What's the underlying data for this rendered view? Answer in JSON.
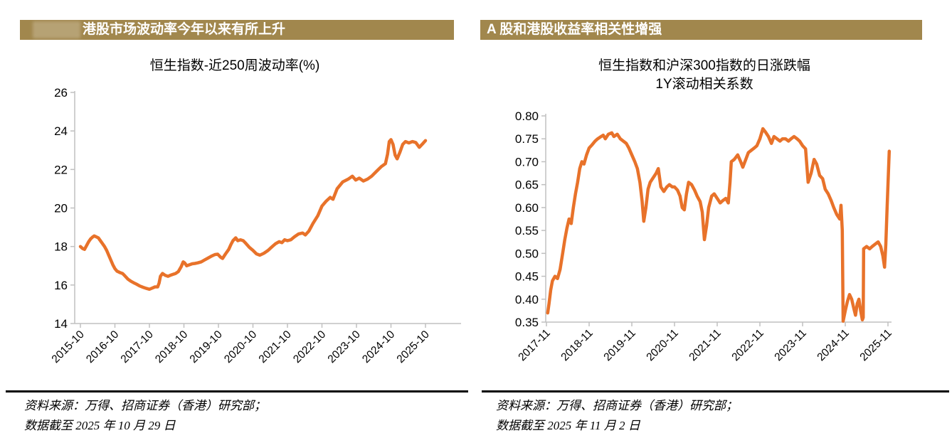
{
  "colors": {
    "header_gold": "#A1874D",
    "header_badge": "#B8A477",
    "line_orange": "#E8722A",
    "axis_grey": "#C0C0C0",
    "header_text": "#FFFFFF"
  },
  "panels": [
    {
      "header_title": "港股市场波动率今年以来有所上升",
      "chart_title": "恒生指数-近250周波动率(%)",
      "source_line1": "资料来源：万得、招商证券（香港）研究部；",
      "source_line2": "数据截至 2025 年 10 月 29 日"
    },
    {
      "header_title": "A 股和港股收益率相关性增强",
      "chart_title_line1": "恒生指数和沪深300指数的日涨跌幅",
      "chart_title_line2": "1Y滚动相关系数",
      "source_line1": "资料来源：万得、招商证券（香港）研究部；",
      "source_line2": "数据截至 2025 年 11 月 2 日"
    }
  ],
  "chart_data": [
    {
      "type": "line",
      "title": "恒生指数-近250周波动率(%)",
      "xlabel": "",
      "ylabel": "",
      "grid": false,
      "legend": "none",
      "ylim": [
        14,
        26
      ],
      "y_ticks": [
        14,
        16,
        18,
        20,
        22,
        24,
        26
      ],
      "y_tick_decimals": 0,
      "x_tick_labels": [
        "2015-10",
        "2016-10",
        "2017-10",
        "2018-10",
        "2019-10",
        "2020-10",
        "2021-10",
        "2022-10",
        "2023-10",
        "2024-10",
        "2025-10"
      ],
      "series": [
        {
          "name": "恒生指数近250周波动率(%)",
          "color": "#E8722A",
          "points": [
            [
              0,
              18.0
            ],
            [
              0.06,
              17.9
            ],
            [
              0.12,
              17.85
            ],
            [
              0.18,
              18.05
            ],
            [
              0.24,
              18.25
            ],
            [
              0.3,
              18.4
            ],
            [
              0.36,
              18.5
            ],
            [
              0.4,
              18.55
            ],
            [
              0.46,
              18.5
            ],
            [
              0.52,
              18.45
            ],
            [
              0.58,
              18.3
            ],
            [
              0.64,
              18.15
            ],
            [
              0.7,
              18.0
            ],
            [
              0.76,
              17.8
            ],
            [
              0.82,
              17.55
            ],
            [
              0.88,
              17.3
            ],
            [
              0.94,
              17.05
            ],
            [
              1.0,
              16.85
            ],
            [
              1.06,
              16.72
            ],
            [
              1.14,
              16.65
            ],
            [
              1.22,
              16.6
            ],
            [
              1.3,
              16.45
            ],
            [
              1.38,
              16.3
            ],
            [
              1.46,
              16.2
            ],
            [
              1.54,
              16.12
            ],
            [
              1.62,
              16.05
            ],
            [
              1.72,
              15.95
            ],
            [
              1.82,
              15.88
            ],
            [
              1.92,
              15.82
            ],
            [
              2.0,
              15.78
            ],
            [
              2.08,
              15.84
            ],
            [
              2.16,
              15.9
            ],
            [
              2.24,
              15.9
            ],
            [
              2.28,
              16.1
            ],
            [
              2.32,
              16.45
            ],
            [
              2.38,
              16.6
            ],
            [
              2.46,
              16.5
            ],
            [
              2.54,
              16.45
            ],
            [
              2.6,
              16.5
            ],
            [
              2.68,
              16.55
            ],
            [
              2.76,
              16.6
            ],
            [
              2.84,
              16.7
            ],
            [
              2.92,
              16.95
            ],
            [
              2.98,
              17.2
            ],
            [
              3.02,
              17.15
            ],
            [
              3.08,
              17.0
            ],
            [
              3.16,
              17.05
            ],
            [
              3.24,
              17.1
            ],
            [
              3.32,
              17.12
            ],
            [
              3.4,
              17.15
            ],
            [
              3.5,
              17.2
            ],
            [
              3.6,
              17.3
            ],
            [
              3.7,
              17.4
            ],
            [
              3.8,
              17.5
            ],
            [
              3.9,
              17.58
            ],
            [
              3.98,
              17.6
            ],
            [
              4.06,
              17.45
            ],
            [
              4.12,
              17.38
            ],
            [
              4.2,
              17.6
            ],
            [
              4.3,
              17.85
            ],
            [
              4.36,
              18.1
            ],
            [
              4.42,
              18.3
            ],
            [
              4.5,
              18.45
            ],
            [
              4.56,
              18.3
            ],
            [
              4.64,
              18.35
            ],
            [
              4.72,
              18.3
            ],
            [
              4.8,
              18.15
            ],
            [
              4.9,
              17.95
            ],
            [
              5.0,
              17.8
            ],
            [
              5.1,
              17.62
            ],
            [
              5.2,
              17.55
            ],
            [
              5.32,
              17.65
            ],
            [
              5.44,
              17.8
            ],
            [
              5.56,
              18.0
            ],
            [
              5.66,
              18.15
            ],
            [
              5.76,
              18.25
            ],
            [
              5.84,
              18.2
            ],
            [
              5.92,
              18.35
            ],
            [
              6.0,
              18.3
            ],
            [
              6.1,
              18.35
            ],
            [
              6.2,
              18.5
            ],
            [
              6.32,
              18.65
            ],
            [
              6.44,
              18.7
            ],
            [
              6.52,
              18.6
            ],
            [
              6.62,
              18.8
            ],
            [
              6.74,
              19.2
            ],
            [
              6.88,
              19.6
            ],
            [
              7.0,
              20.1
            ],
            [
              7.12,
              20.35
            ],
            [
              7.24,
              20.55
            ],
            [
              7.32,
              20.45
            ],
            [
              7.44,
              21.0
            ],
            [
              7.6,
              21.35
            ],
            [
              7.76,
              21.5
            ],
            [
              7.88,
              21.65
            ],
            [
              7.98,
              21.45
            ],
            [
              8.08,
              21.55
            ],
            [
              8.2,
              21.4
            ],
            [
              8.32,
              21.5
            ],
            [
              8.44,
              21.65
            ],
            [
              8.58,
              21.9
            ],
            [
              8.72,
              22.15
            ],
            [
              8.84,
              22.3
            ],
            [
              8.9,
              22.8
            ],
            [
              8.95,
              23.45
            ],
            [
              9.0,
              23.55
            ],
            [
              9.06,
              23.3
            ],
            [
              9.12,
              22.75
            ],
            [
              9.18,
              22.55
            ],
            [
              9.26,
              22.9
            ],
            [
              9.34,
              23.3
            ],
            [
              9.42,
              23.45
            ],
            [
              9.52,
              23.38
            ],
            [
              9.62,
              23.45
            ],
            [
              9.72,
              23.4
            ],
            [
              9.82,
              23.15
            ],
            [
              9.9,
              23.3
            ],
            [
              10.0,
              23.5
            ]
          ]
        }
      ]
    },
    {
      "type": "line",
      "title": "恒生指数和沪深300指数的日涨跌幅 1Y滚动相关系数",
      "xlabel": "",
      "ylabel": "",
      "grid": false,
      "legend": "none",
      "ylim": [
        0.35,
        0.8
      ],
      "y_ticks": [
        0.35,
        0.4,
        0.45,
        0.5,
        0.55,
        0.6,
        0.65,
        0.7,
        0.75,
        0.8
      ],
      "y_tick_decimals": 2,
      "x_tick_labels": [
        "2017-11",
        "2018-11",
        "2019-11",
        "2020-11",
        "2021-11",
        "2022-11",
        "2023-11",
        "2024-11",
        "2025-11"
      ],
      "series": [
        {
          "name": "恒生指数与沪深300 1Y滚动相关系数",
          "color": "#E8722A",
          "points": [
            [
              0.03,
              0.37
            ],
            [
              0.06,
              0.39
            ],
            [
              0.1,
              0.42
            ],
            [
              0.14,
              0.44
            ],
            [
              0.2,
              0.45
            ],
            [
              0.26,
              0.445
            ],
            [
              0.32,
              0.465
            ],
            [
              0.38,
              0.5
            ],
            [
              0.43,
              0.53
            ],
            [
              0.48,
              0.555
            ],
            [
              0.53,
              0.575
            ],
            [
              0.58,
              0.565
            ],
            [
              0.63,
              0.6
            ],
            [
              0.68,
              0.63
            ],
            [
              0.73,
              0.655
            ],
            [
              0.78,
              0.685
            ],
            [
              0.83,
              0.7
            ],
            [
              0.88,
              0.695
            ],
            [
              0.94,
              0.715
            ],
            [
              1.0,
              0.73
            ],
            [
              1.07,
              0.737
            ],
            [
              1.14,
              0.745
            ],
            [
              1.2,
              0.75
            ],
            [
              1.28,
              0.755
            ],
            [
              1.33,
              0.758
            ],
            [
              1.38,
              0.75
            ],
            [
              1.45,
              0.76
            ],
            [
              1.53,
              0.763
            ],
            [
              1.58,
              0.755
            ],
            [
              1.66,
              0.76
            ],
            [
              1.73,
              0.75
            ],
            [
              1.8,
              0.745
            ],
            [
              1.87,
              0.74
            ],
            [
              1.93,
              0.73
            ],
            [
              2.0,
              0.715
            ],
            [
              2.07,
              0.7
            ],
            [
              2.13,
              0.685
            ],
            [
              2.19,
              0.655
            ],
            [
              2.24,
              0.615
            ],
            [
              2.28,
              0.57
            ],
            [
              2.33,
              0.6
            ],
            [
              2.38,
              0.64
            ],
            [
              2.43,
              0.655
            ],
            [
              2.5,
              0.665
            ],
            [
              2.57,
              0.675
            ],
            [
              2.62,
              0.685
            ],
            [
              2.68,
              0.645
            ],
            [
              2.75,
              0.635
            ],
            [
              2.82,
              0.645
            ],
            [
              2.88,
              0.65
            ],
            [
              2.95,
              0.645
            ],
            [
              3.0,
              0.645
            ],
            [
              3.07,
              0.638
            ],
            [
              3.13,
              0.625
            ],
            [
              3.18,
              0.6
            ],
            [
              3.23,
              0.595
            ],
            [
              3.28,
              0.63
            ],
            [
              3.33,
              0.655
            ],
            [
              3.4,
              0.65
            ],
            [
              3.47,
              0.638
            ],
            [
              3.53,
              0.625
            ],
            [
              3.6,
              0.613
            ],
            [
              3.65,
              0.59
            ],
            [
              3.7,
              0.53
            ],
            [
              3.75,
              0.56
            ],
            [
              3.8,
              0.6
            ],
            [
              3.87,
              0.625
            ],
            [
              3.93,
              0.63
            ],
            [
              4.0,
              0.62
            ],
            [
              4.07,
              0.61
            ],
            [
              4.13,
              0.615
            ],
            [
              4.2,
              0.62
            ],
            [
              4.26,
              0.61
            ],
            [
              4.3,
              0.655
            ],
            [
              4.33,
              0.7
            ],
            [
              4.4,
              0.705
            ],
            [
              4.48,
              0.715
            ],
            [
              4.55,
              0.7
            ],
            [
              4.6,
              0.688
            ],
            [
              4.67,
              0.705
            ],
            [
              4.73,
              0.72
            ],
            [
              4.8,
              0.725
            ],
            [
              4.87,
              0.73
            ],
            [
              4.93,
              0.735
            ],
            [
              5.0,
              0.75
            ],
            [
              5.07,
              0.772
            ],
            [
              5.13,
              0.765
            ],
            [
              5.2,
              0.755
            ],
            [
              5.27,
              0.74
            ],
            [
              5.33,
              0.755
            ],
            [
              5.4,
              0.75
            ],
            [
              5.47,
              0.745
            ],
            [
              5.53,
              0.75
            ],
            [
              5.6,
              0.75
            ],
            [
              5.67,
              0.745
            ],
            [
              5.73,
              0.75
            ],
            [
              5.8,
              0.755
            ],
            [
              5.87,
              0.75
            ],
            [
              5.93,
              0.745
            ],
            [
              6.0,
              0.735
            ],
            [
              6.07,
              0.728
            ],
            [
              6.13,
              0.655
            ],
            [
              6.2,
              0.675
            ],
            [
              6.27,
              0.705
            ],
            [
              6.33,
              0.695
            ],
            [
              6.4,
              0.67
            ],
            [
              6.47,
              0.663
            ],
            [
              6.53,
              0.64
            ],
            [
              6.6,
              0.63
            ],
            [
              6.67,
              0.615
            ],
            [
              6.73,
              0.6
            ],
            [
              6.8,
              0.585
            ],
            [
              6.87,
              0.575
            ],
            [
              6.9,
              0.605
            ],
            [
              6.93,
              0.55
            ],
            [
              6.95,
              0.352
            ],
            [
              7.0,
              0.375
            ],
            [
              7.05,
              0.395
            ],
            [
              7.1,
              0.41
            ],
            [
              7.15,
              0.4
            ],
            [
              7.2,
              0.38
            ],
            [
              7.24,
              0.365
            ],
            [
              7.28,
              0.39
            ],
            [
              7.32,
              0.4
            ],
            [
              7.36,
              0.375
            ],
            [
              7.4,
              0.355
            ],
            [
              7.42,
              0.36
            ],
            [
              7.43,
              0.51
            ],
            [
              7.5,
              0.515
            ],
            [
              7.57,
              0.51
            ],
            [
              7.63,
              0.515
            ],
            [
              7.7,
              0.52
            ],
            [
              7.77,
              0.525
            ],
            [
              7.83,
              0.515
            ],
            [
              7.88,
              0.495
            ],
            [
              7.92,
              0.47
            ],
            [
              7.95,
              0.52
            ],
            [
              7.98,
              0.6
            ],
            [
              8.03,
              0.723
            ]
          ]
        }
      ]
    }
  ]
}
